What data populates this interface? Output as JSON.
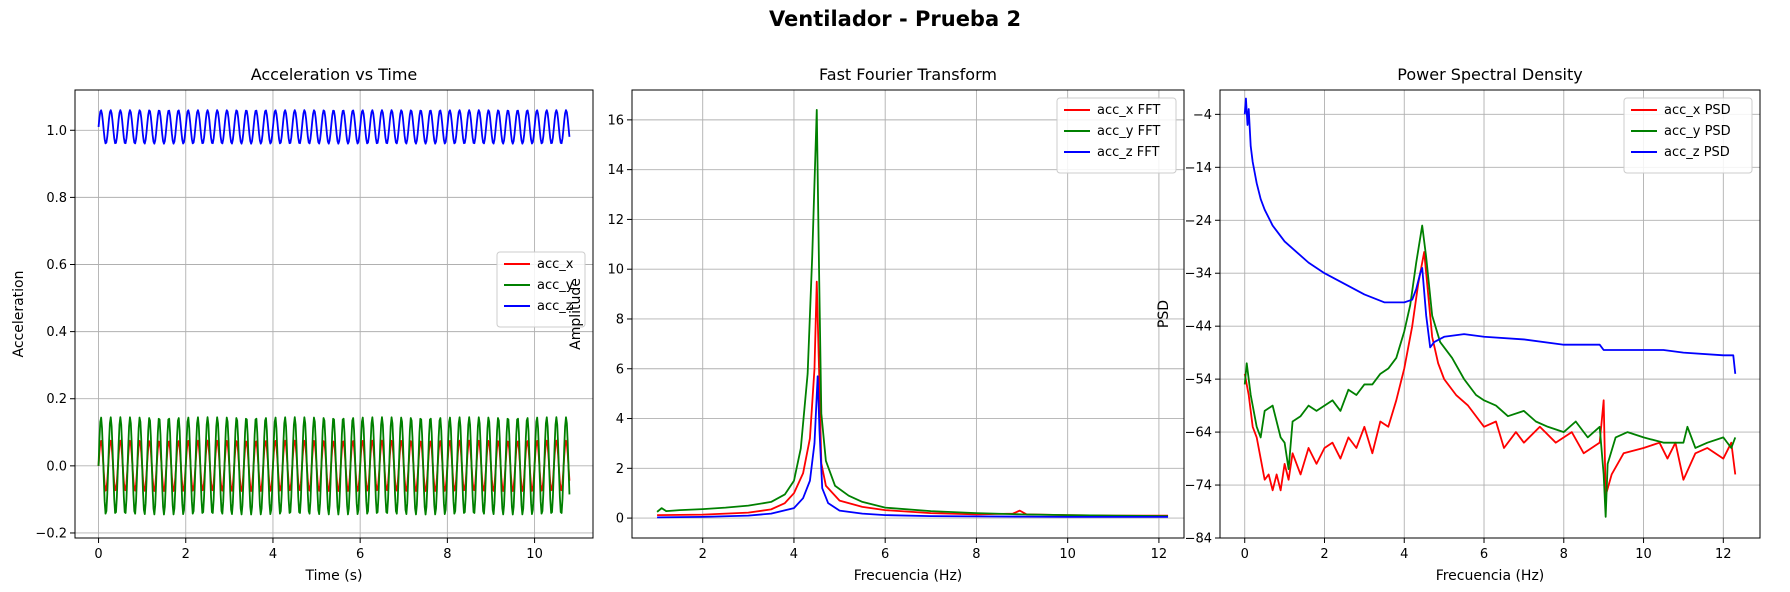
{
  "figure_title": "Ventilador - Prueba 2",
  "chart_data": [
    {
      "type": "line",
      "title": "Acceleration vs Time",
      "xlabel": "Time (s)",
      "ylabel": "Acceleration",
      "xlim": [
        -0.54,
        11.34
      ],
      "ylim": [
        -0.215,
        1.12
      ],
      "xticks": [
        0,
        2,
        4,
        6,
        8,
        10
      ],
      "yticks": [
        -0.2,
        0.0,
        0.2,
        0.4,
        0.6,
        0.8,
        1.0
      ],
      "ytick_labels": [
        "−0.2",
        "0.0",
        "0.2",
        "0.4",
        "0.6",
        "0.8",
        "1.0"
      ],
      "grid": true,
      "legend_position": "center-right",
      "series": [
        {
          "name": "acc_x",
          "color": "#ff0000",
          "signal": {
            "type": "sine",
            "x_start": 0,
            "x_end": 10.8,
            "step": 0.02,
            "offset": 0.0,
            "amplitude": 0.075,
            "frequency_hz": 4.5
          }
        },
        {
          "name": "acc_y",
          "color": "#008000",
          "signal": {
            "type": "sine",
            "x_start": 0,
            "x_end": 10.8,
            "step": 0.02,
            "offset": 0.0,
            "amplitude": 0.145,
            "frequency_hz": 4.5
          }
        },
        {
          "name": "acc_z",
          "color": "#0000ff",
          "signal": {
            "type": "sine",
            "x_start": 0,
            "x_end": 10.8,
            "step": 0.02,
            "offset": 1.01,
            "amplitude": 0.05,
            "frequency_hz": 4.5
          }
        }
      ]
    },
    {
      "type": "line",
      "title": "Fast Fourier Transform",
      "xlabel": "Frecuencia (Hz)",
      "ylabel": "Amplitude",
      "xlim": [
        0.45,
        12.55
      ],
      "ylim": [
        -0.8,
        17.2
      ],
      "xticks": [
        2,
        4,
        6,
        8,
        10,
        12
      ],
      "yticks": [
        0,
        2,
        4,
        6,
        8,
        10,
        12,
        14,
        16
      ],
      "grid": true,
      "legend_position": "top-right",
      "series": [
        {
          "name": "acc_x FFT",
          "color": "#ff0000",
          "points": [
            [
              1.0,
              0.12
            ],
            [
              2.0,
              0.14
            ],
            [
              3.0,
              0.22
            ],
            [
              3.5,
              0.35
            ],
            [
              3.8,
              0.6
            ],
            [
              4.0,
              1.0
            ],
            [
              4.2,
              1.8
            ],
            [
              4.35,
              3.2
            ],
            [
              4.45,
              6.0
            ],
            [
              4.5,
              9.5
            ],
            [
              4.55,
              6.0
            ],
            [
              4.6,
              2.2
            ],
            [
              4.7,
              1.3
            ],
            [
              5.0,
              0.7
            ],
            [
              5.5,
              0.45
            ],
            [
              6.0,
              0.32
            ],
            [
              7.0,
              0.2
            ],
            [
              8.0,
              0.15
            ],
            [
              8.8,
              0.18
            ],
            [
              8.95,
              0.3
            ],
            [
              9.1,
              0.15
            ],
            [
              10.0,
              0.12
            ],
            [
              11.0,
              0.1
            ],
            [
              12.2,
              0.1
            ]
          ]
        },
        {
          "name": "acc_y FFT",
          "color": "#008000",
          "points": [
            [
              1.0,
              0.25
            ],
            [
              1.1,
              0.4
            ],
            [
              1.2,
              0.28
            ],
            [
              1.5,
              0.32
            ],
            [
              2.0,
              0.36
            ],
            [
              2.5,
              0.42
            ],
            [
              3.0,
              0.5
            ],
            [
              3.5,
              0.65
            ],
            [
              3.8,
              0.95
            ],
            [
              4.0,
              1.5
            ],
            [
              4.15,
              2.8
            ],
            [
              4.3,
              5.8
            ],
            [
              4.4,
              10.5
            ],
            [
              4.5,
              16.4
            ],
            [
              4.55,
              10.0
            ],
            [
              4.6,
              4.2
            ],
            [
              4.7,
              2.3
            ],
            [
              4.9,
              1.3
            ],
            [
              5.2,
              0.9
            ],
            [
              5.5,
              0.65
            ],
            [
              6.0,
              0.42
            ],
            [
              7.0,
              0.28
            ],
            [
              8.0,
              0.2
            ],
            [
              9.0,
              0.15
            ],
            [
              10.0,
              0.12
            ],
            [
              11.0,
              0.1
            ],
            [
              12.2,
              0.08
            ]
          ]
        },
        {
          "name": "acc_z FFT",
          "color": "#0000ff",
          "points": [
            [
              1.0,
              0.03
            ],
            [
              2.0,
              0.05
            ],
            [
              3.0,
              0.1
            ],
            [
              3.5,
              0.18
            ],
            [
              4.0,
              0.4
            ],
            [
              4.2,
              0.8
            ],
            [
              4.35,
              1.5
            ],
            [
              4.45,
              3.0
            ],
            [
              4.52,
              5.7
            ],
            [
              4.56,
              3.5
            ],
            [
              4.62,
              1.2
            ],
            [
              4.75,
              0.6
            ],
            [
              5.0,
              0.3
            ],
            [
              5.5,
              0.18
            ],
            [
              6.0,
              0.12
            ],
            [
              7.0,
              0.08
            ],
            [
              8.0,
              0.07
            ],
            [
              9.0,
              0.06
            ],
            [
              10.0,
              0.05
            ],
            [
              11.0,
              0.05
            ],
            [
              12.2,
              0.05
            ]
          ]
        }
      ]
    },
    {
      "type": "line",
      "title": "Power Spectral Density",
      "xlabel": "Frecuencia (Hz)",
      "ylabel": "PSD",
      "xlim": [
        -0.62,
        12.92
      ],
      "ylim": [
        -84,
        0.6
      ],
      "xticks": [
        0,
        2,
        4,
        6,
        8,
        10,
        12
      ],
      "yticks": [
        -4,
        -14,
        -24,
        -34,
        -44,
        -54,
        -64,
        -74,
        -84
      ],
      "ytick_labels": [
        "−4",
        "−14",
        "−24",
        "−34",
        "−44",
        "−54",
        "−64",
        "−74",
        "−84"
      ],
      "grid": true,
      "legend_position": "top-right",
      "series": [
        {
          "name": "acc_x PSD",
          "color": "#ff0000",
          "points": [
            [
              0.0,
              -53
            ],
            [
              0.1,
              -57
            ],
            [
              0.2,
              -63
            ],
            [
              0.3,
              -65
            ],
            [
              0.4,
              -69
            ],
            [
              0.5,
              -73
            ],
            [
              0.6,
              -72
            ],
            [
              0.7,
              -75
            ],
            [
              0.8,
              -72
            ],
            [
              0.9,
              -75
            ],
            [
              1.0,
              -70
            ],
            [
              1.1,
              -73
            ],
            [
              1.2,
              -68
            ],
            [
              1.4,
              -72
            ],
            [
              1.6,
              -67
            ],
            [
              1.8,
              -70
            ],
            [
              2.0,
              -67
            ],
            [
              2.2,
              -66
            ],
            [
              2.4,
              -69
            ],
            [
              2.6,
              -65
            ],
            [
              2.8,
              -67
            ],
            [
              3.0,
              -63
            ],
            [
              3.2,
              -68
            ],
            [
              3.4,
              -62
            ],
            [
              3.6,
              -63
            ],
            [
              3.8,
              -58
            ],
            [
              4.0,
              -52
            ],
            [
              4.2,
              -44
            ],
            [
              4.35,
              -36
            ],
            [
              4.5,
              -30
            ],
            [
              4.6,
              -38
            ],
            [
              4.7,
              -46
            ],
            [
              4.85,
              -51
            ],
            [
              5.0,
              -54
            ],
            [
              5.3,
              -57
            ],
            [
              5.6,
              -59
            ],
            [
              6.0,
              -63
            ],
            [
              6.3,
              -62
            ],
            [
              6.5,
              -67
            ],
            [
              6.8,
              -64
            ],
            [
              7.0,
              -66
            ],
            [
              7.4,
              -63
            ],
            [
              7.8,
              -66
            ],
            [
              8.2,
              -64
            ],
            [
              8.5,
              -68
            ],
            [
              8.9,
              -66
            ],
            [
              9.0,
              -58
            ],
            [
              9.05,
              -76
            ],
            [
              9.2,
              -72
            ],
            [
              9.5,
              -68
            ],
            [
              10.0,
              -67
            ],
            [
              10.4,
              -66
            ],
            [
              10.6,
              -69
            ],
            [
              10.8,
              -66
            ],
            [
              11.0,
              -73
            ],
            [
              11.3,
              -68
            ],
            [
              11.6,
              -67
            ],
            [
              12.0,
              -69
            ],
            [
              12.2,
              -66
            ],
            [
              12.3,
              -72
            ]
          ]
        },
        {
          "name": "acc_y PSD",
          "color": "#008000",
          "points": [
            [
              0.0,
              -55
            ],
            [
              0.05,
              -51
            ],
            [
              0.15,
              -57
            ],
            [
              0.3,
              -63
            ],
            [
              0.4,
              -65
            ],
            [
              0.5,
              -60
            ],
            [
              0.7,
              -59
            ],
            [
              0.9,
              -65
            ],
            [
              1.0,
              -66
            ],
            [
              1.1,
              -71
            ],
            [
              1.2,
              -62
            ],
            [
              1.4,
              -61
            ],
            [
              1.6,
              -59
            ],
            [
              1.8,
              -60
            ],
            [
              2.0,
              -59
            ],
            [
              2.2,
              -58
            ],
            [
              2.4,
              -60
            ],
            [
              2.6,
              -56
            ],
            [
              2.8,
              -57
            ],
            [
              3.0,
              -55
            ],
            [
              3.2,
              -55
            ],
            [
              3.4,
              -53
            ],
            [
              3.6,
              -52
            ],
            [
              3.8,
              -50
            ],
            [
              4.0,
              -45
            ],
            [
              4.15,
              -40
            ],
            [
              4.3,
              -32
            ],
            [
              4.45,
              -25
            ],
            [
              4.55,
              -31
            ],
            [
              4.7,
              -42
            ],
            [
              4.9,
              -47
            ],
            [
              5.2,
              -50
            ],
            [
              5.5,
              -54
            ],
            [
              5.8,
              -57
            ],
            [
              6.0,
              -58
            ],
            [
              6.3,
              -59
            ],
            [
              6.6,
              -61
            ],
            [
              7.0,
              -60
            ],
            [
              7.3,
              -62
            ],
            [
              7.6,
              -63
            ],
            [
              8.0,
              -64
            ],
            [
              8.3,
              -62
            ],
            [
              8.6,
              -65
            ],
            [
              8.9,
              -63
            ],
            [
              9.0,
              -72
            ],
            [
              9.05,
              -80
            ],
            [
              9.1,
              -70
            ],
            [
              9.3,
              -65
            ],
            [
              9.6,
              -64
            ],
            [
              10.0,
              -65
            ],
            [
              10.5,
              -66
            ],
            [
              11.0,
              -66
            ],
            [
              11.1,
              -63
            ],
            [
              11.3,
              -67
            ],
            [
              11.6,
              -66
            ],
            [
              12.0,
              -65
            ],
            [
              12.2,
              -67
            ],
            [
              12.3,
              -65
            ]
          ]
        },
        {
          "name": "acc_z PSD",
          "color": "#0000ff",
          "points": [
            [
              0.0,
              -4
            ],
            [
              0.03,
              -1
            ],
            [
              0.07,
              -6
            ],
            [
              0.1,
              -3
            ],
            [
              0.15,
              -10
            ],
            [
              0.2,
              -13
            ],
            [
              0.3,
              -17
            ],
            [
              0.4,
              -20
            ],
            [
              0.5,
              -22
            ],
            [
              0.7,
              -25
            ],
            [
              1.0,
              -28
            ],
            [
              1.3,
              -30
            ],
            [
              1.6,
              -32
            ],
            [
              2.0,
              -34
            ],
            [
              2.5,
              -36
            ],
            [
              3.0,
              -38
            ],
            [
              3.5,
              -39.5
            ],
            [
              4.0,
              -39.5
            ],
            [
              4.2,
              -39
            ],
            [
              4.3,
              -37
            ],
            [
              4.4,
              -34
            ],
            [
              4.45,
              -33
            ],
            [
              4.55,
              -42
            ],
            [
              4.65,
              -48
            ],
            [
              4.75,
              -47
            ],
            [
              5.0,
              -46
            ],
            [
              5.5,
              -45.5
            ],
            [
              6.0,
              -46
            ],
            [
              7.0,
              -46.5
            ],
            [
              8.0,
              -47.5
            ],
            [
              8.9,
              -47.5
            ],
            [
              9.0,
              -48.5
            ],
            [
              10.0,
              -48.5
            ],
            [
              10.5,
              -48.5
            ],
            [
              11.0,
              -49
            ],
            [
              12.0,
              -49.5
            ],
            [
              12.25,
              -49.5
            ],
            [
              12.3,
              -53
            ]
          ]
        }
      ]
    }
  ]
}
